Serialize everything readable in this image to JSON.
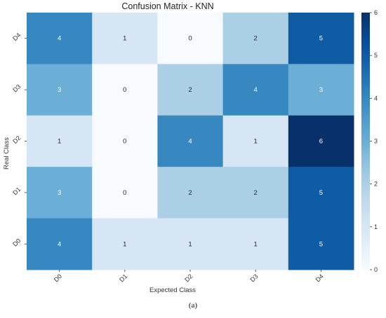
{
  "chart_data": {
    "type": "heatmap",
    "title": "Confusion Matrix - KNN",
    "xlabel": "Expected Class",
    "ylabel": "Real Class",
    "x_categories": [
      "D0",
      "D1",
      "D2",
      "D3",
      "D4"
    ],
    "y_categories_top_to_bottom": [
      "D4",
      "D3",
      "D2",
      "D1",
      "D0"
    ],
    "values": [
      [
        4,
        1,
        0,
        2,
        5
      ],
      [
        3,
        0,
        2,
        4,
        3
      ],
      [
        1,
        0,
        4,
        1,
        6
      ],
      [
        3,
        0,
        2,
        2,
        5
      ],
      [
        4,
        1,
        1,
        1,
        5
      ]
    ],
    "colorbar": {
      "cmap": "Blues",
      "range": [
        0,
        6
      ],
      "ticks": [
        0,
        1,
        2,
        3,
        4,
        5,
        6
      ]
    }
  },
  "caption": "(a)"
}
